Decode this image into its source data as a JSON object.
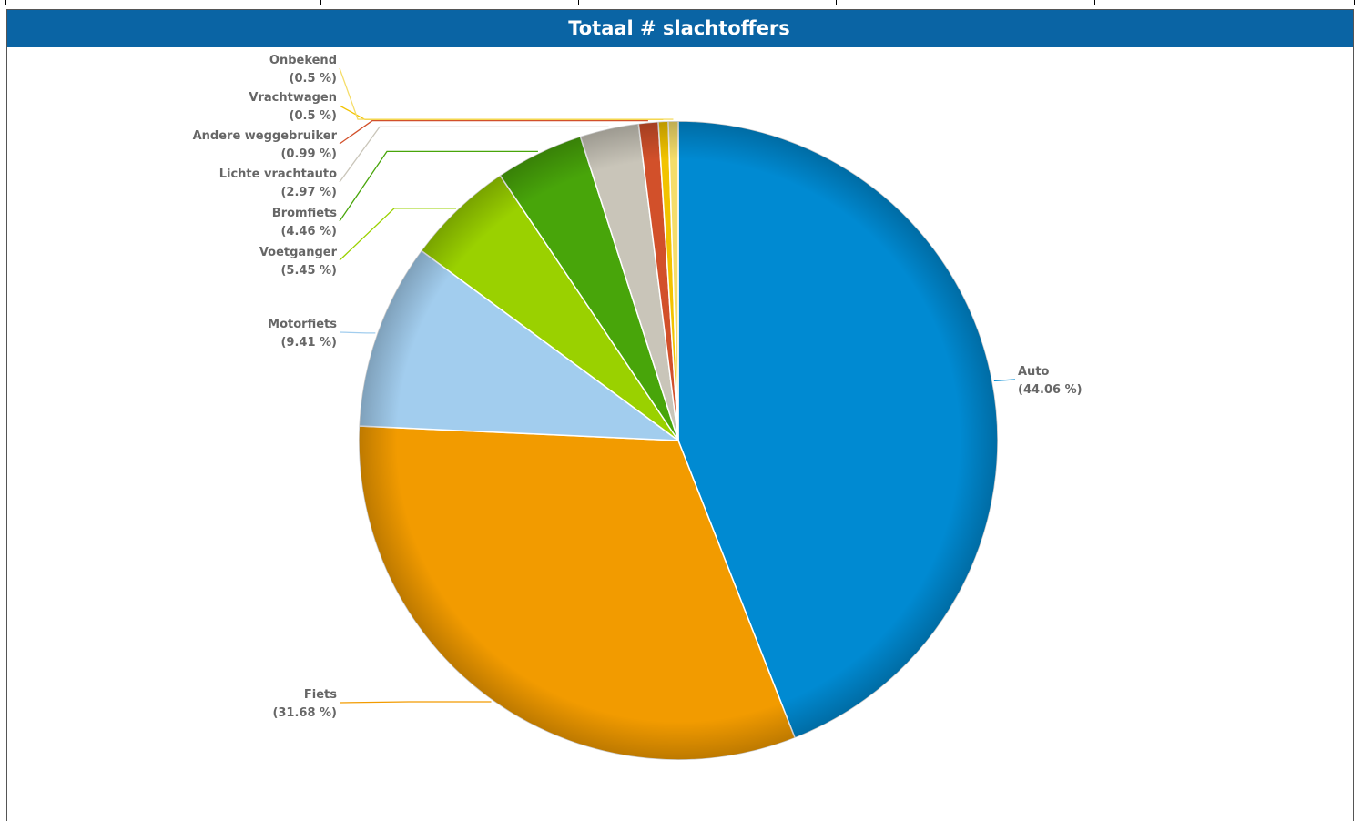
{
  "chart_data": {
    "type": "pie",
    "title": "Totaal # slachtoffers",
    "categories": [
      "Auto",
      "Fiets",
      "Motorfiets",
      "Voetganger",
      "Bromfiets",
      "Lichte vrachtauto",
      "Andere weggebruiker",
      "Vrachtwagen",
      "Onbekend"
    ],
    "values": [
      44.06,
      31.68,
      9.41,
      5.45,
      4.46,
      2.97,
      0.99,
      0.5,
      0.5
    ],
    "value_labels": [
      "(44.06 %)",
      "(31.68 %)",
      "(9.41 %)",
      "(5.45 %)",
      "(4.46 %)",
      "(2.97 %)",
      "(0.99 %)",
      "(0.5 %)",
      "(0.5 %)"
    ],
    "colors": [
      "#008ad2",
      "#f29b00",
      "#a2cdee",
      "#9ad100",
      "#48a50a",
      "#c9c5b9",
      "#d2502a",
      "#f2c300",
      "#f5dd6a"
    ]
  }
}
